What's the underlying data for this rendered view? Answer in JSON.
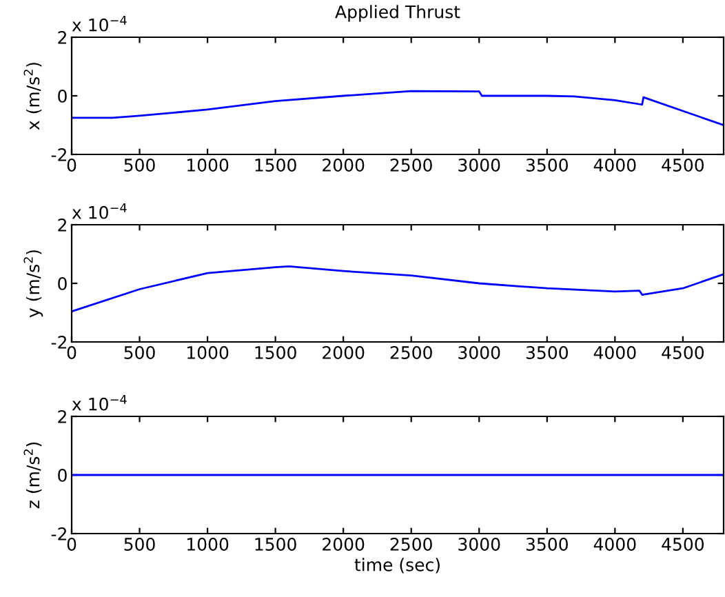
{
  "chart_data": [
    {
      "type": "line",
      "title": "Applied Thrust",
      "ylabel": "x (m/s$^{2}$)",
      "annotations": [
        "x 10$^{−4}$"
      ],
      "xlim": [
        0,
        4800
      ],
      "xticks": [
        0,
        500,
        1000,
        1500,
        2000,
        2500,
        3000,
        3500,
        4000,
        4500
      ],
      "ylim": [
        -2,
        2
      ],
      "yticks": [
        -2,
        0,
        2
      ],
      "grid": false,
      "legend": false,
      "series": [
        {
          "color": "#0000ff",
          "x": [
            0,
            300,
            500,
            1000,
            1500,
            2000,
            2500,
            3000,
            3020,
            3500,
            3700,
            4000,
            4200,
            4210,
            4800
          ],
          "values": [
            -0.75,
            -0.75,
            -0.68,
            -0.47,
            -0.18,
            0.0,
            0.16,
            0.15,
            0.0,
            0.0,
            -0.02,
            -0.15,
            -0.3,
            -0.05,
            -1.0
          ]
        }
      ]
    },
    {
      "type": "line",
      "ylabel": "y (m/s$^{2}$)",
      "annotations": [
        "x 10$^{−4}$"
      ],
      "xlim": [
        0,
        4800
      ],
      "xticks": [
        0,
        500,
        1000,
        1500,
        2000,
        2500,
        3000,
        3500,
        4000,
        4500
      ],
      "ylim": [
        -2,
        2
      ],
      "yticks": [
        -2,
        0,
        2
      ],
      "grid": false,
      "legend": false,
      "series": [
        {
          "color": "#0000ff",
          "x": [
            0,
            500,
            1000,
            1500,
            1600,
            2000,
            2500,
            3000,
            3500,
            4000,
            4180,
            4200,
            4500,
            4800
          ],
          "values": [
            -0.96,
            -0.2,
            0.35,
            0.55,
            0.58,
            0.42,
            0.27,
            0.0,
            -0.17,
            -0.28,
            -0.25,
            -0.39,
            -0.17,
            0.31
          ]
        }
      ]
    },
    {
      "type": "line",
      "ylabel": "z (m/s$^{2}$)",
      "xlabel": "time (sec)",
      "annotations": [
        "x 10$^{−4}$"
      ],
      "xlim": [
        0,
        4800
      ],
      "xticks": [
        0,
        500,
        1000,
        1500,
        2000,
        2500,
        3000,
        3500,
        4000,
        4500
      ],
      "ylim": [
        -2,
        2
      ],
      "yticks": [
        -2,
        0,
        2
      ],
      "grid": false,
      "legend": false,
      "series": [
        {
          "color": "#0000ff",
          "x": [
            0,
            4800
          ],
          "values": [
            0,
            0
          ]
        }
      ]
    }
  ]
}
